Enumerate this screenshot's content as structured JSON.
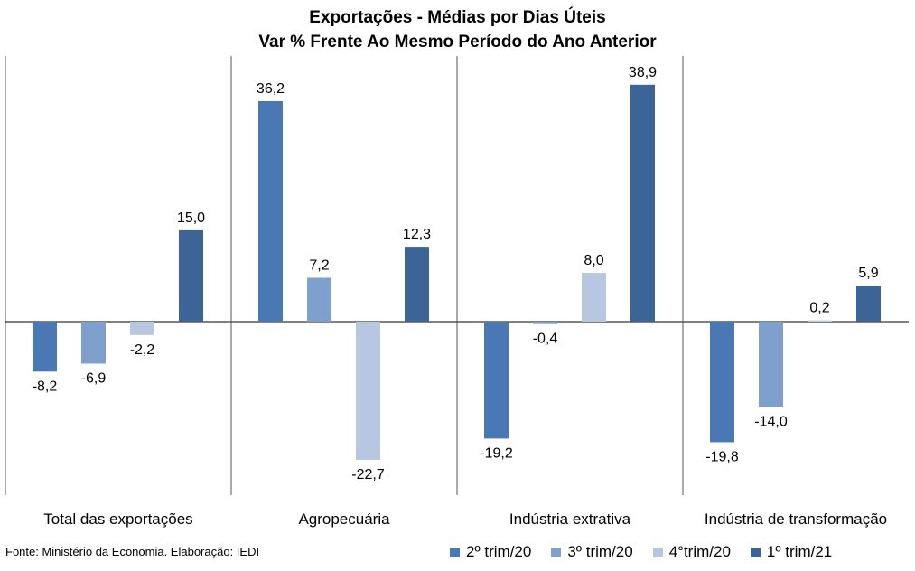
{
  "title": {
    "line1": "Exportações - Médias por Dias Úteis",
    "line2": "Var % Frente Ao Mesmo Período do Ano Anterior"
  },
  "source": "Fonte: Ministério da Economia. Elaboração: IEDI",
  "colors": {
    "series": [
      "#4a78b5",
      "#7f9fcd",
      "#b7c7e1",
      "#3c6497"
    ],
    "axis": "#000000",
    "divider": "#555555"
  },
  "chart_data": {
    "type": "bar",
    "categories": [
      "Total das exportações",
      "Agropecuária",
      "Indústria extrativa",
      "Indústria de transformação"
    ],
    "series": [
      {
        "name": "2º trim/20",
        "values": [
          -8.2,
          36.2,
          -19.2,
          -19.8
        ],
        "labels": [
          "-8,2",
          "36,2",
          "-19,2",
          "-19,8"
        ]
      },
      {
        "name": "3º trim/20",
        "values": [
          -6.9,
          7.2,
          -0.4,
          -14.0
        ],
        "labels": [
          "-6,9",
          "7,2",
          "-0,4",
          "-14,0"
        ]
      },
      {
        "name": "4°trim/20",
        "values": [
          -2.2,
          -22.7,
          8.0,
          0.2
        ],
        "labels": [
          "-2,2",
          "-22,7",
          "8,0",
          "0,2"
        ]
      },
      {
        "name": "1º trim/21",
        "values": [
          15.0,
          12.3,
          38.9,
          5.9
        ],
        "labels": [
          "15,0",
          "12,3",
          "38,9",
          "5,9"
        ]
      }
    ],
    "ylim": [
      -28,
      43.5
    ],
    "grid": false,
    "legend_position": "bottom-right"
  }
}
